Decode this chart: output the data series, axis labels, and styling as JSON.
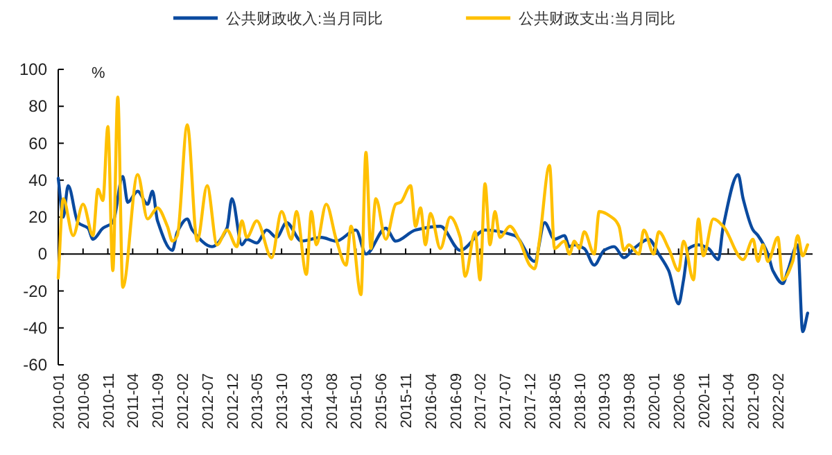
{
  "chart_data": {
    "type": "line",
    "ylabel": "%",
    "legend": "top",
    "line_style": "solid",
    "marker": "none",
    "xlim": [
      "2010-01",
      "2022-09"
    ],
    "xticks": [
      "2010-01",
      "2010-06",
      "2010-11",
      "2011-04",
      "2011-09",
      "2012-02",
      "2012-07",
      "2012-12",
      "2013-05",
      "2013-10",
      "2014-03",
      "2014-08",
      "2015-01",
      "2015-06",
      "2015-11",
      "2016-04",
      "2016-09",
      "2017-02",
      "2017-07",
      "2017-12",
      "2018-05",
      "2018-10",
      "2019-03",
      "2019-08",
      "2020-01",
      "2020-06",
      "2020-11",
      "2021-04",
      "2021-09",
      "2022-02"
    ],
    "ylim": [
      -60,
      100
    ],
    "yticks": [
      -60,
      -40,
      -20,
      0,
      20,
      40,
      60,
      80,
      100
    ],
    "series": [
      {
        "name": "公共财政收入:当月同比",
        "color": "#0a4a9f",
        "x": [
          "2010-01",
          "2010-02",
          "2010-03",
          "2010-05",
          "2010-07",
          "2010-08",
          "2010-10",
          "2010-12",
          "2011-02",
          "2011-03",
          "2011-05",
          "2011-07",
          "2011-08",
          "2011-09",
          "2011-12",
          "2012-01",
          "2012-03",
          "2012-04",
          "2012-08",
          "2012-11",
          "2012-12",
          "2013-02",
          "2013-03",
          "2013-05",
          "2013-07",
          "2013-09",
          "2013-11",
          "2014-02",
          "2014-06",
          "2014-09",
          "2015-01",
          "2015-03",
          "2015-07",
          "2015-09",
          "2016-01",
          "2016-06",
          "2016-10",
          "2017-03",
          "2017-09",
          "2018-01",
          "2018-03",
          "2018-05",
          "2018-07",
          "2018-08",
          "2018-09",
          "2018-11",
          "2019-01",
          "2019-03",
          "2019-05",
          "2019-07",
          "2019-09",
          "2019-12",
          "2020-02",
          "2020-04",
          "2020-06",
          "2020-07",
          "2020-08",
          "2020-10",
          "2020-12",
          "2021-02",
          "2021-03",
          "2021-06",
          "2021-07",
          "2021-09",
          "2021-10",
          "2021-12",
          "2022-01",
          "2022-03",
          "2022-04",
          "2022-06",
          "2022-07",
          "2022-08"
        ],
        "values": [
          41,
          20,
          37,
          17,
          14,
          8,
          14,
          17,
          42,
          28,
          34,
          27,
          34,
          18,
          2,
          12,
          19,
          13,
          4,
          14,
          30,
          5,
          8,
          6,
          13,
          9,
          17,
          7,
          9,
          7,
          13,
          0,
          14,
          7,
          13,
          15,
          2,
          13,
          10,
          -4,
          17,
          8,
          10,
          4,
          5,
          3,
          -6,
          2,
          4,
          -2,
          3,
          8,
          0,
          -9,
          -27,
          -14,
          3,
          5,
          3,
          -3,
          15,
          43,
          30,
          13,
          10,
          0,
          -9,
          -16,
          -9,
          5,
          -42,
          -32
        ]
      },
      {
        "name": "公共财政支出:当月同比",
        "color": "#ffc000",
        "x": [
          "2010-01",
          "2010-02",
          "2010-04",
          "2010-06",
          "2010-08",
          "2010-09",
          "2010-10",
          "2010-11",
          "2010-12",
          "2011-01",
          "2011-02",
          "2011-05",
          "2011-07",
          "2011-09",
          "2011-11",
          "2011-12",
          "2012-01",
          "2012-03",
          "2012-05",
          "2012-07",
          "2012-09",
          "2012-11",
          "2013-01",
          "2013-02",
          "2013-03",
          "2013-05",
          "2013-08",
          "2013-10",
          "2013-12",
          "2014-01",
          "2014-03",
          "2014-04",
          "2014-05",
          "2014-07",
          "2014-09",
          "2014-11",
          "2014-12",
          "2015-02",
          "2015-03",
          "2015-04",
          "2015-05",
          "2015-07",
          "2015-09",
          "2015-10",
          "2015-12",
          "2016-01",
          "2016-02",
          "2016-03",
          "2016-04",
          "2016-06",
          "2016-08",
          "2016-10",
          "2016-11",
          "2017-01",
          "2017-02",
          "2017-03",
          "2017-04",
          "2017-05",
          "2017-06",
          "2017-08",
          "2017-10",
          "2017-12",
          "2018-01",
          "2018-02",
          "2018-04",
          "2018-05",
          "2018-07",
          "2018-08",
          "2018-09",
          "2018-10",
          "2018-11",
          "2019-01",
          "2019-02",
          "2019-05",
          "2019-06",
          "2019-07",
          "2019-08",
          "2019-10",
          "2019-11",
          "2020-01",
          "2020-02",
          "2020-04",
          "2020-06",
          "2020-07",
          "2020-09",
          "2020-10",
          "2020-11",
          "2021-01",
          "2021-03",
          "2021-07",
          "2021-09",
          "2021-10",
          "2021-11",
          "2021-12",
          "2022-02",
          "2022-03",
          "2022-05",
          "2022-06",
          "2022-07",
          "2022-08"
        ],
        "values": [
          -13,
          30,
          10,
          27,
          10,
          35,
          29,
          69,
          -9,
          85,
          -18,
          43,
          19,
          25,
          15,
          7,
          10,
          70,
          7,
          37,
          5,
          13,
          4,
          18,
          9,
          18,
          -2,
          23,
          8,
          23,
          -11,
          23,
          5,
          27,
          8,
          -6,
          15,
          -22,
          55,
          3,
          30,
          8,
          27,
          28,
          37,
          15,
          25,
          5,
          22,
          3,
          20,
          9,
          -12,
          12,
          -14,
          38,
          5,
          23,
          9,
          15,
          7,
          -6,
          -8,
          8,
          48,
          3,
          7,
          0,
          7,
          3,
          12,
          0,
          23,
          19,
          15,
          2,
          5,
          0,
          13,
          0,
          12,
          3,
          -9,
          7,
          -14,
          19,
          -1,
          19,
          15,
          -3,
          8,
          -4,
          5,
          -4,
          9,
          -14,
          -4,
          10,
          -1,
          5
        ]
      }
    ]
  }
}
